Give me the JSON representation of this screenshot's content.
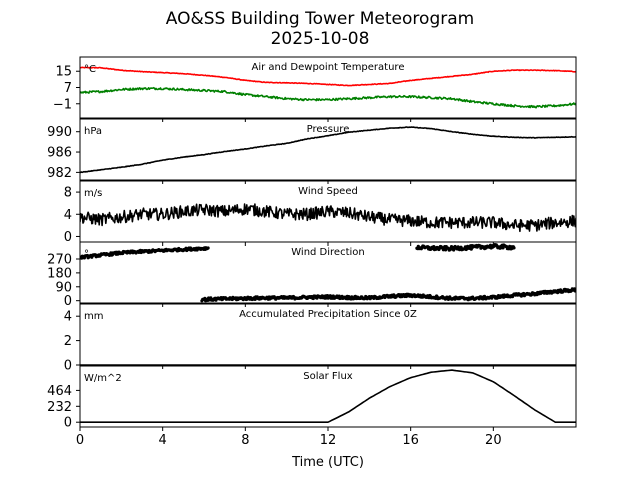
{
  "chart_data": {
    "type": "line",
    "title": "AO&SS Building Tower Meteorogram",
    "subtitle": "2025-10-08",
    "xlabel": "Time (UTC)",
    "xlim": [
      0,
      24
    ],
    "x_ticks": [
      "0",
      "4",
      "8",
      "12",
      "16",
      "20"
    ],
    "x_tick_values": [
      0,
      4,
      8,
      12,
      16,
      20
    ],
    "panels": [
      {
        "id": "temp",
        "title": "Air and Dewpoint Temperature",
        "unit": "°C",
        "ylim": [
          -8,
          22
        ],
        "y_ticks": [
          "15",
          "7",
          "−1"
        ],
        "y_tick_values": [
          15,
          7,
          -1
        ],
        "series": [
          {
            "name": "Air Temperature",
            "color": "#ff0000",
            "noise": 0.15,
            "x": [
              0,
              1,
              2,
              3,
              4,
              5,
              6,
              7,
              8,
              9,
              10,
              11,
              12,
              13,
              14,
              15,
              16,
              17,
              18,
              19,
              20,
              21,
              22,
              23,
              24
            ],
            "y": [
              16.8,
              16.7,
              15.5,
              14.8,
              14.3,
              13.8,
              13.0,
              12.0,
              10.5,
              9.5,
              9.3,
              9.0,
              8.5,
              8.0,
              8.5,
              9.0,
              10.5,
              11.5,
              12.5,
              13.5,
              15.0,
              15.5,
              15.5,
              15.3,
              14.8
            ]
          },
          {
            "name": "Dewpoint",
            "color": "#008000",
            "noise": 0.5,
            "x": [
              0,
              1,
              2,
              3,
              4,
              5,
              6,
              7,
              8,
              9,
              10,
              11,
              12,
              13,
              14,
              15,
              16,
              17,
              18,
              19,
              20,
              21,
              22,
              23,
              24
            ],
            "y": [
              4.5,
              5.0,
              6.0,
              6.5,
              6.5,
              6.0,
              5.5,
              5.0,
              3.5,
              2.5,
              1.5,
              1.0,
              1.0,
              1.5,
              2.0,
              2.5,
              2.5,
              2.0,
              1.5,
              0,
              -1.0,
              -2.0,
              -2.5,
              -2.0,
              -1.0
            ]
          }
        ]
      },
      {
        "id": "pressure",
        "title": "Pressure",
        "unit": "hPa",
        "ylim": [
          980.5,
          992.5
        ],
        "y_ticks": [
          "990",
          "986",
          "982"
        ],
        "y_tick_values": [
          990,
          986,
          982
        ],
        "series": [
          {
            "name": "Pressure",
            "color": "#000000",
            "noise": 0.05,
            "x": [
              0,
              1,
              2,
              3,
              4,
              5,
              6,
              7,
              8,
              9,
              10,
              11,
              12,
              13,
              14,
              15,
              16,
              17,
              18,
              19,
              20,
              21,
              22,
              23,
              24
            ],
            "y": [
              982.0,
              982.5,
              983.0,
              983.6,
              984.4,
              985.0,
              985.5,
              986.1,
              986.6,
              987.2,
              987.7,
              988.6,
              989.2,
              989.9,
              990.3,
              990.7,
              990.9,
              990.6,
              990.0,
              989.5,
              989.1,
              988.9,
              988.8,
              988.9,
              989.0
            ]
          }
        ]
      },
      {
        "id": "wind_speed",
        "title": "Wind Speed",
        "unit": "m/s",
        "ylim": [
          -1,
          10
        ],
        "y_ticks": [
          "8",
          "4",
          "0"
        ],
        "y_tick_values": [
          8,
          4,
          0
        ],
        "series": [
          {
            "name": "Wind Speed",
            "color": "#000000",
            "noise": 1.1,
            "x": [
              0,
              1,
              2,
              3,
              4,
              5,
              6,
              7,
              8,
              9,
              10,
              11,
              12,
              13,
              14,
              15,
              16,
              17,
              18,
              19,
              20,
              21,
              22,
              23,
              24
            ],
            "y": [
              3.5,
              3.0,
              3.5,
              4.0,
              4.0,
              4.5,
              4.8,
              4.5,
              5.0,
              4.5,
              4.0,
              4.0,
              4.5,
              4.2,
              3.5,
              3.0,
              2.8,
              2.5,
              2.5,
              2.5,
              2.5,
              2.0,
              2.0,
              2.5,
              2.8
            ]
          }
        ]
      },
      {
        "id": "wind_dir",
        "title": "Wind Direction",
        "unit": "°",
        "ylim": [
          -15,
          380
        ],
        "y_ticks": [
          "270",
          "180",
          "90",
          "0"
        ],
        "y_tick_values": [
          270,
          180,
          90,
          0
        ],
        "scatter": true,
        "series": [
          {
            "name": "Wind Direction (NW)",
            "color": "#000000",
            "noise": 8,
            "x": [
              0,
              1,
              2,
              3,
              4,
              5,
              6.2
            ],
            "y": [
              280,
              295,
              310,
              318,
              325,
              332,
              340
            ]
          },
          {
            "name": "Wind Direction (N)",
            "color": "#000000",
            "noise": 9,
            "x": [
              5.9,
              7,
              8,
              9,
              10,
              11,
              12,
              13,
              14,
              15,
              16,
              17,
              18,
              19,
              20,
              21,
              22,
              23,
              24
            ],
            "y": [
              8,
              12,
              15,
              18,
              18,
              22,
              25,
              20,
              18,
              28,
              35,
              25,
              15,
              15,
              22,
              35,
              45,
              60,
              70
            ]
          },
          {
            "name": "Wind Direction (NNW)",
            "color": "#000000",
            "noise": 12,
            "x": [
              16.3,
              17,
              18,
              19,
              20,
              21
            ],
            "y": [
              345,
              340,
              338,
              345,
              352,
              345
            ]
          }
        ]
      },
      {
        "id": "precip",
        "title": "Accumulated Precipitation Since 0Z",
        "unit": "mm",
        "ylim": [
          0,
          5
        ],
        "y_ticks": [
          "4",
          "2",
          "0"
        ],
        "y_tick_values": [
          4,
          2,
          0
        ],
        "series": [
          {
            "name": "Precipitation",
            "color": "#000000",
            "noise": 0,
            "x": [
              0,
              24
            ],
            "y": [
              0,
              0
            ]
          }
        ]
      },
      {
        "id": "solar",
        "title": "Solar Flux",
        "unit": "W/m^2",
        "ylim": [
          -70,
          820
        ],
        "y_ticks": [
          "464",
          "232",
          "0"
        ],
        "y_tick_values": [
          464,
          232,
          0
        ],
        "series": [
          {
            "name": "Solar Flux",
            "color": "#000000",
            "noise": 0,
            "x": [
              0,
              12,
              13,
              14,
              15,
              16,
              17,
              18,
              19,
              20,
              21,
              22,
              23,
              24
            ],
            "y": [
              0,
              0,
              150,
              350,
              520,
              650,
              730,
              760,
              720,
              590,
              390,
              180,
              0,
              0
            ]
          }
        ]
      }
    ]
  }
}
